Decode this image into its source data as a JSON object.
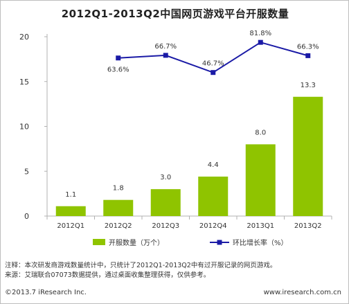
{
  "chart_data": {
    "type": "bar",
    "title": "2012Q1-2013Q2中国网页游戏平台开服数量",
    "categories": [
      "2012Q1",
      "2012Q2",
      "2012Q3",
      "2012Q4",
      "2013Q1",
      "2013Q2"
    ],
    "series": [
      {
        "name": "开服数量（万个）",
        "type": "bar",
        "axis": "left",
        "values": [
          1.1,
          1.8,
          3.0,
          4.4,
          8.0,
          13.3
        ],
        "labels": [
          "1.1",
          "1.8",
          "3.0",
          "4.4",
          "8.0",
          "13.3"
        ],
        "color": "#8fc400"
      },
      {
        "name": "环比增长率（%）",
        "type": "line",
        "axis": "right",
        "values": [
          null,
          63.6,
          66.7,
          46.7,
          81.8,
          66.3
        ],
        "labels": [
          "",
          "63.6%",
          "66.7%",
          "46.7%",
          "81.8%",
          "66.3%"
        ],
        "color": "#1a1aa6"
      }
    ],
    "yticks": [
      "0",
      "5",
      "10",
      "15",
      "20"
    ],
    "ylim": [
      0,
      20
    ],
    "grid": false,
    "legend_position": "bottom"
  },
  "notes": {
    "note1": "注释：本次研发商游戏数量统计中，只统计了2012Q1-2013Q2中有过开服记录的网页游戏。",
    "note2": "来源：艾瑞联合07073数据提供，通过桌面收集整理获得，仅供参考。"
  },
  "footer": {
    "copyright": "©2013.7 iResearch Inc.",
    "website": "www.iresearch.com.cn"
  },
  "colors": {
    "bar": "#8fc400",
    "line": "#1a1aa6",
    "axis": "#b0b0b0"
  }
}
